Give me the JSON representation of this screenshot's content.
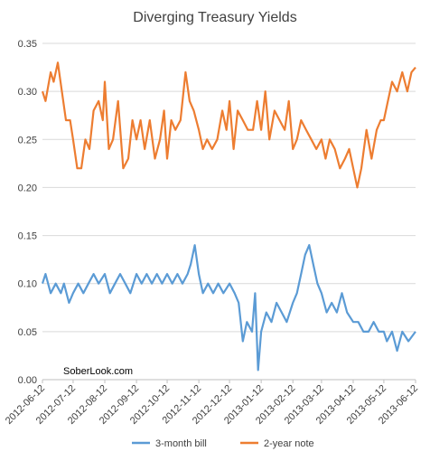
{
  "chart_data": {
    "type": "line",
    "title": "Diverging Treasury Yields",
    "annotation": "SoberLook.com",
    "y_ticks": [
      "0.00",
      "0.05",
      "0.10",
      "0.15",
      "0.20",
      "0.25",
      "0.30",
      "0.35"
    ],
    "ylim": [
      0,
      0.35
    ],
    "x_ticks": [
      "2012-06-12",
      "2012-07-12",
      "2012-08-12",
      "2012-09-12",
      "2012-10-12",
      "2012-11-12",
      "2012-12-12",
      "2013-01-12",
      "2013-02-12",
      "2013-03-12",
      "2013-04-12",
      "2013-05-12",
      "2013-06-12"
    ],
    "xlim": [
      "2012-06-12",
      "2013-06-12"
    ],
    "grid": "horizontal",
    "legend_position": "bottom",
    "series": [
      {
        "name": "3-month bill",
        "color": "#5B9BD5",
        "x": [
          "2012-06-12",
          "2012-06-15",
          "2012-06-20",
          "2012-06-25",
          "2012-06-30",
          "2012-07-03",
          "2012-07-08",
          "2012-07-12",
          "2012-07-17",
          "2012-07-22",
          "2012-07-27",
          "2012-08-01",
          "2012-08-06",
          "2012-08-12",
          "2012-08-17",
          "2012-08-22",
          "2012-08-27",
          "2012-09-01",
          "2012-09-06",
          "2012-09-12",
          "2012-09-17",
          "2012-09-22",
          "2012-09-27",
          "2012-10-02",
          "2012-10-07",
          "2012-10-12",
          "2012-10-17",
          "2012-10-22",
          "2012-10-27",
          "2012-11-01",
          "2012-11-04",
          "2012-11-08",
          "2012-11-12",
          "2012-11-16",
          "2012-11-21",
          "2012-11-26",
          "2012-12-01",
          "2012-12-06",
          "2012-12-12",
          "2012-12-17",
          "2012-12-21",
          "2012-12-25",
          "2012-12-29",
          "2013-01-03",
          "2013-01-06",
          "2013-01-09",
          "2013-01-12",
          "2013-01-17",
          "2013-01-22",
          "2013-01-27",
          "2013-02-01",
          "2013-02-06",
          "2013-02-12",
          "2013-02-16",
          "2013-02-20",
          "2013-02-24",
          "2013-02-28",
          "2013-03-04",
          "2013-03-08",
          "2013-03-12",
          "2013-03-17",
          "2013-03-22",
          "2013-03-27",
          "2013-04-01",
          "2013-04-06",
          "2013-04-12",
          "2013-04-17",
          "2013-04-22",
          "2013-04-27",
          "2013-05-02",
          "2013-05-07",
          "2013-05-12",
          "2013-05-15",
          "2013-05-20",
          "2013-05-25",
          "2013-05-30",
          "2013-06-05",
          "2013-06-12"
        ],
        "values": [
          0.1,
          0.11,
          0.09,
          0.1,
          0.09,
          0.1,
          0.08,
          0.09,
          0.1,
          0.09,
          0.1,
          0.11,
          0.1,
          0.11,
          0.09,
          0.1,
          0.11,
          0.1,
          0.09,
          0.11,
          0.1,
          0.11,
          0.1,
          0.11,
          0.1,
          0.11,
          0.1,
          0.11,
          0.1,
          0.11,
          0.12,
          0.14,
          0.11,
          0.09,
          0.1,
          0.09,
          0.1,
          0.09,
          0.1,
          0.09,
          0.08,
          0.04,
          0.06,
          0.05,
          0.09,
          0.01,
          0.05,
          0.07,
          0.06,
          0.08,
          0.07,
          0.06,
          0.08,
          0.09,
          0.11,
          0.13,
          0.14,
          0.12,
          0.1,
          0.09,
          0.07,
          0.08,
          0.07,
          0.09,
          0.07,
          0.06,
          0.06,
          0.05,
          0.05,
          0.06,
          0.05,
          0.05,
          0.04,
          0.05,
          0.03,
          0.05,
          0.04,
          0.05
        ]
      },
      {
        "name": "2-year note",
        "color": "#ED7D31",
        "x": [
          "2012-06-12",
          "2012-06-15",
          "2012-06-20",
          "2012-06-23",
          "2012-06-27",
          "2012-07-01",
          "2012-07-05",
          "2012-07-09",
          "2012-07-12",
          "2012-07-16",
          "2012-07-20",
          "2012-07-24",
          "2012-07-28",
          "2012-08-01",
          "2012-08-06",
          "2012-08-10",
          "2012-08-12",
          "2012-08-16",
          "2012-08-20",
          "2012-08-25",
          "2012-08-30",
          "2012-09-04",
          "2012-09-08",
          "2012-09-12",
          "2012-09-16",
          "2012-09-20",
          "2012-09-25",
          "2012-09-30",
          "2012-10-05",
          "2012-10-09",
          "2012-10-12",
          "2012-10-16",
          "2012-10-20",
          "2012-10-25",
          "2012-10-30",
          "2012-11-03",
          "2012-11-07",
          "2012-11-12",
          "2012-11-16",
          "2012-11-20",
          "2012-11-25",
          "2012-11-30",
          "2012-12-05",
          "2012-12-09",
          "2012-12-12",
          "2012-12-16",
          "2012-12-20",
          "2012-12-25",
          "2012-12-30",
          "2013-01-04",
          "2013-01-08",
          "2013-01-12",
          "2013-01-16",
          "2013-01-20",
          "2013-01-25",
          "2013-01-30",
          "2013-02-04",
          "2013-02-08",
          "2013-02-12",
          "2013-02-16",
          "2013-02-20",
          "2013-02-25",
          "2013-03-02",
          "2013-03-07",
          "2013-03-12",
          "2013-03-16",
          "2013-03-20",
          "2013-03-25",
          "2013-03-30",
          "2013-04-04",
          "2013-04-08",
          "2013-04-12",
          "2013-04-16",
          "2013-04-20",
          "2013-04-25",
          "2013-04-30",
          "2013-05-05",
          "2013-05-09",
          "2013-05-12",
          "2013-05-16",
          "2013-05-20",
          "2013-05-25",
          "2013-05-30",
          "2013-06-04",
          "2013-06-08",
          "2013-06-12"
        ],
        "values": [
          0.3,
          0.29,
          0.32,
          0.31,
          0.33,
          0.3,
          0.27,
          0.27,
          0.25,
          0.22,
          0.22,
          0.25,
          0.24,
          0.28,
          0.29,
          0.27,
          0.31,
          0.24,
          0.25,
          0.29,
          0.22,
          0.23,
          0.27,
          0.25,
          0.27,
          0.24,
          0.27,
          0.23,
          0.25,
          0.28,
          0.23,
          0.27,
          0.26,
          0.27,
          0.32,
          0.29,
          0.28,
          0.26,
          0.24,
          0.25,
          0.24,
          0.25,
          0.28,
          0.26,
          0.29,
          0.24,
          0.28,
          0.27,
          0.26,
          0.26,
          0.29,
          0.26,
          0.3,
          0.25,
          0.28,
          0.27,
          0.26,
          0.29,
          0.24,
          0.25,
          0.27,
          0.26,
          0.25,
          0.24,
          0.25,
          0.23,
          0.25,
          0.24,
          0.22,
          0.23,
          0.24,
          0.22,
          0.2,
          0.22,
          0.26,
          0.23,
          0.26,
          0.27,
          0.27,
          0.29,
          0.31,
          0.3,
          0.32,
          0.3,
          0.32,
          0.325
        ]
      }
    ]
  }
}
